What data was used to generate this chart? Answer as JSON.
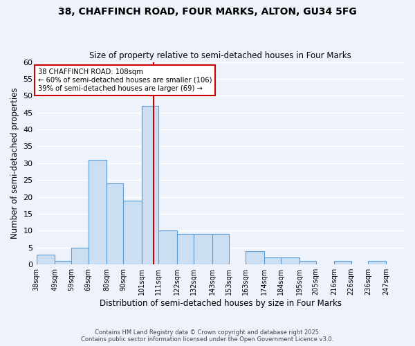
{
  "title": "38, CHAFFINCH ROAD, FOUR MARKS, ALTON, GU34 5FG",
  "subtitle": "Size of property relative to semi-detached houses in Four Marks",
  "xlabel": "Distribution of semi-detached houses by size in Four Marks",
  "ylabel": "Number of semi-detached properties",
  "bin_labels": [
    "38sqm",
    "49sqm",
    "59sqm",
    "69sqm",
    "80sqm",
    "90sqm",
    "101sqm",
    "111sqm",
    "122sqm",
    "132sqm",
    "143sqm",
    "153sqm",
    "163sqm",
    "174sqm",
    "184sqm",
    "195sqm",
    "205sqm",
    "216sqm",
    "226sqm",
    "236sqm",
    "247sqm"
  ],
  "bin_edges": [
    38,
    49,
    59,
    69,
    80,
    90,
    101,
    111,
    122,
    132,
    143,
    153,
    163,
    174,
    184,
    195,
    205,
    216,
    226,
    236,
    247,
    258
  ],
  "counts": [
    3,
    1,
    5,
    31,
    24,
    19,
    47,
    10,
    9,
    9,
    9,
    0,
    4,
    2,
    2,
    1,
    0,
    1,
    0,
    1,
    0
  ],
  "bar_color": "#ccdff2",
  "bar_edge_color": "#5b9bd5",
  "vline_x": 108,
  "vline_color": "#cc0000",
  "annotation_title": "38 CHAFFINCH ROAD: 108sqm",
  "annotation_line1": "← 60% of semi-detached houses are smaller (106)",
  "annotation_line2": "39% of semi-detached houses are larger (69) →",
  "annotation_box_color": "#ffffff",
  "annotation_box_edge": "#cc0000",
  "ylim": [
    0,
    60
  ],
  "yticks": [
    0,
    5,
    10,
    15,
    20,
    25,
    30,
    35,
    40,
    45,
    50,
    55,
    60
  ],
  "bg_color": "#eef2fb",
  "grid_color": "#ffffff",
  "footer_line1": "Contains HM Land Registry data © Crown copyright and database right 2025.",
  "footer_line2": "Contains public sector information licensed under the Open Government Licence v3.0."
}
